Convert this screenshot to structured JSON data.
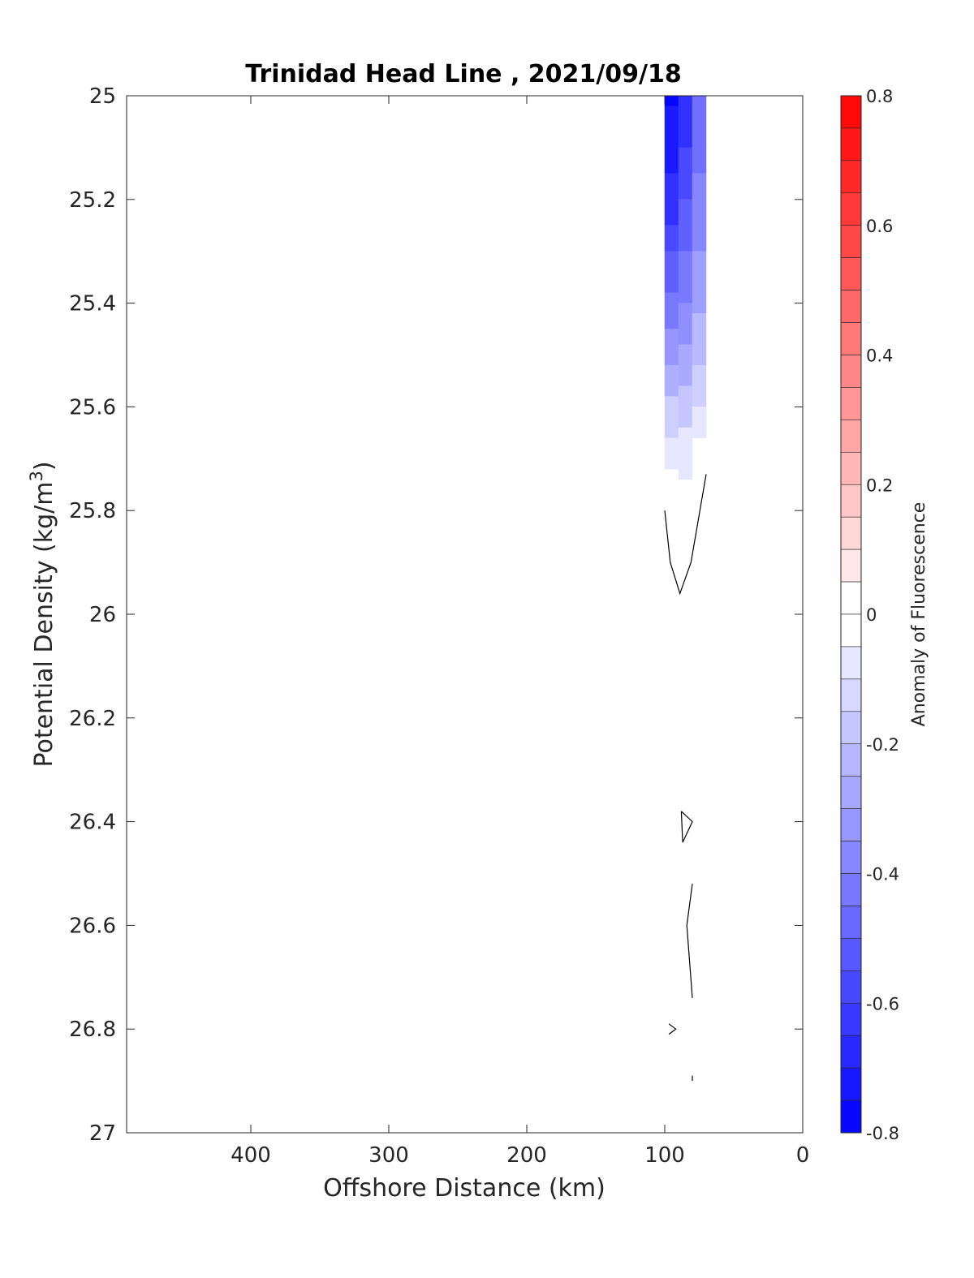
{
  "chart_data": {
    "type": "heatmap",
    "subtype": "filled-contour",
    "title": "Trinidad Head Line , 2021/09/18",
    "xlabel": "Offshore Distance (km)",
    "ylabel": "Potential Density (kg/m",
    "ylabel_superscript": "3",
    "ylabel_close": ")",
    "xlim": [
      490,
      0
    ],
    "x_reversed": true,
    "ylim": [
      25,
      27
    ],
    "y_reversed": true,
    "x_ticks": [
      400,
      300,
      200,
      100,
      0
    ],
    "x_tick_labels": [
      "400",
      "300",
      "200",
      "100",
      "0"
    ],
    "y_ticks": [
      25,
      25.2,
      25.4,
      25.6,
      25.8,
      26,
      26.2,
      26.4,
      26.6,
      26.8,
      27
    ],
    "y_tick_labels": [
      "25",
      "25.2",
      "25.4",
      "25.6",
      "25.8",
      "26",
      "26.2",
      "26.4",
      "26.6",
      "26.8",
      "27"
    ],
    "grid": false,
    "colorbar": {
      "label": "Anomaly of Fluorescence",
      "range": [
        -0.8,
        0.8
      ],
      "levels": 32,
      "ticks": [
        0.8,
        0.6,
        0.4,
        0.2,
        0,
        -0.2,
        -0.4,
        -0.6,
        -0.8
      ],
      "tick_labels": [
        "0.8",
        "0.6",
        "0.4",
        "0.2",
        "0",
        "-0.2",
        "-0.4",
        "-0.6",
        "-0.8"
      ],
      "colormap": "blue-white-red",
      "color_low": "#0000ff",
      "color_mid": "#ffffff",
      "color_high": "#ff0000"
    },
    "filled_columns": [
      {
        "x_range": [
          100,
          90
        ],
        "bands": [
          {
            "y": [
              25.0,
              25.02
            ],
            "value": -0.78
          },
          {
            "y": [
              25.02,
              25.15
            ],
            "value": -0.72
          },
          {
            "y": [
              25.15,
              25.25
            ],
            "value": -0.65
          },
          {
            "y": [
              25.25,
              25.3
            ],
            "value": -0.57
          },
          {
            "y": [
              25.3,
              25.38
            ],
            "value": -0.5
          },
          {
            "y": [
              25.38,
              25.45
            ],
            "value": -0.42
          },
          {
            "y": [
              25.45,
              25.52
            ],
            "value": -0.33
          },
          {
            "y": [
              25.52,
              25.58
            ],
            "value": -0.25
          },
          {
            "y": [
              25.58,
              25.66
            ],
            "value": -0.15
          },
          {
            "y": [
              25.66,
              25.72
            ],
            "value": -0.08
          }
        ]
      },
      {
        "x_range": [
          90,
          80
        ],
        "bands": [
          {
            "y": [
              25.0,
              25.1
            ],
            "value": -0.65
          },
          {
            "y": [
              25.1,
              25.2
            ],
            "value": -0.57
          },
          {
            "y": [
              25.2,
              25.3
            ],
            "value": -0.5
          },
          {
            "y": [
              25.3,
              25.4
            ],
            "value": -0.42
          },
          {
            "y": [
              25.4,
              25.48
            ],
            "value": -0.35
          },
          {
            "y": [
              25.48,
              25.56
            ],
            "value": -0.27
          },
          {
            "y": [
              25.56,
              25.64
            ],
            "value": -0.18
          },
          {
            "y": [
              25.64,
              25.74
            ],
            "value": -0.08
          }
        ]
      },
      {
        "x_range": [
          80,
          70
        ],
        "bands": [
          {
            "y": [
              25.0,
              25.15
            ],
            "value": -0.45
          },
          {
            "y": [
              25.15,
              25.3
            ],
            "value": -0.38
          },
          {
            "y": [
              25.3,
              25.42
            ],
            "value": -0.3
          },
          {
            "y": [
              25.42,
              25.52
            ],
            "value": -0.22
          },
          {
            "y": [
              25.52,
              25.6
            ],
            "value": -0.15
          },
          {
            "y": [
              25.6,
              25.66
            ],
            "value": -0.08
          }
        ]
      }
    ],
    "contour_lines": [
      {
        "level": 0,
        "points": [
          [
            100,
            25.8
          ],
          [
            96,
            25.9
          ],
          [
            89,
            25.96
          ],
          [
            81,
            25.9
          ],
          [
            70,
            25.73
          ]
        ]
      },
      {
        "level": 0,
        "points": [
          [
            88,
            26.38
          ],
          [
            80,
            26.4
          ],
          [
            87,
            26.44
          ],
          [
            88,
            26.38
          ]
        ]
      },
      {
        "level": 0,
        "points": [
          [
            80,
            26.52
          ],
          [
            84,
            26.6
          ],
          [
            80,
            26.74
          ]
        ]
      },
      {
        "level": 0,
        "points": [
          [
            97,
            26.79
          ],
          [
            92,
            26.8
          ],
          [
            97,
            26.81
          ]
        ]
      },
      {
        "level": 0,
        "points": [
          [
            80,
            26.89
          ],
          [
            80,
            26.9
          ]
        ]
      }
    ]
  }
}
